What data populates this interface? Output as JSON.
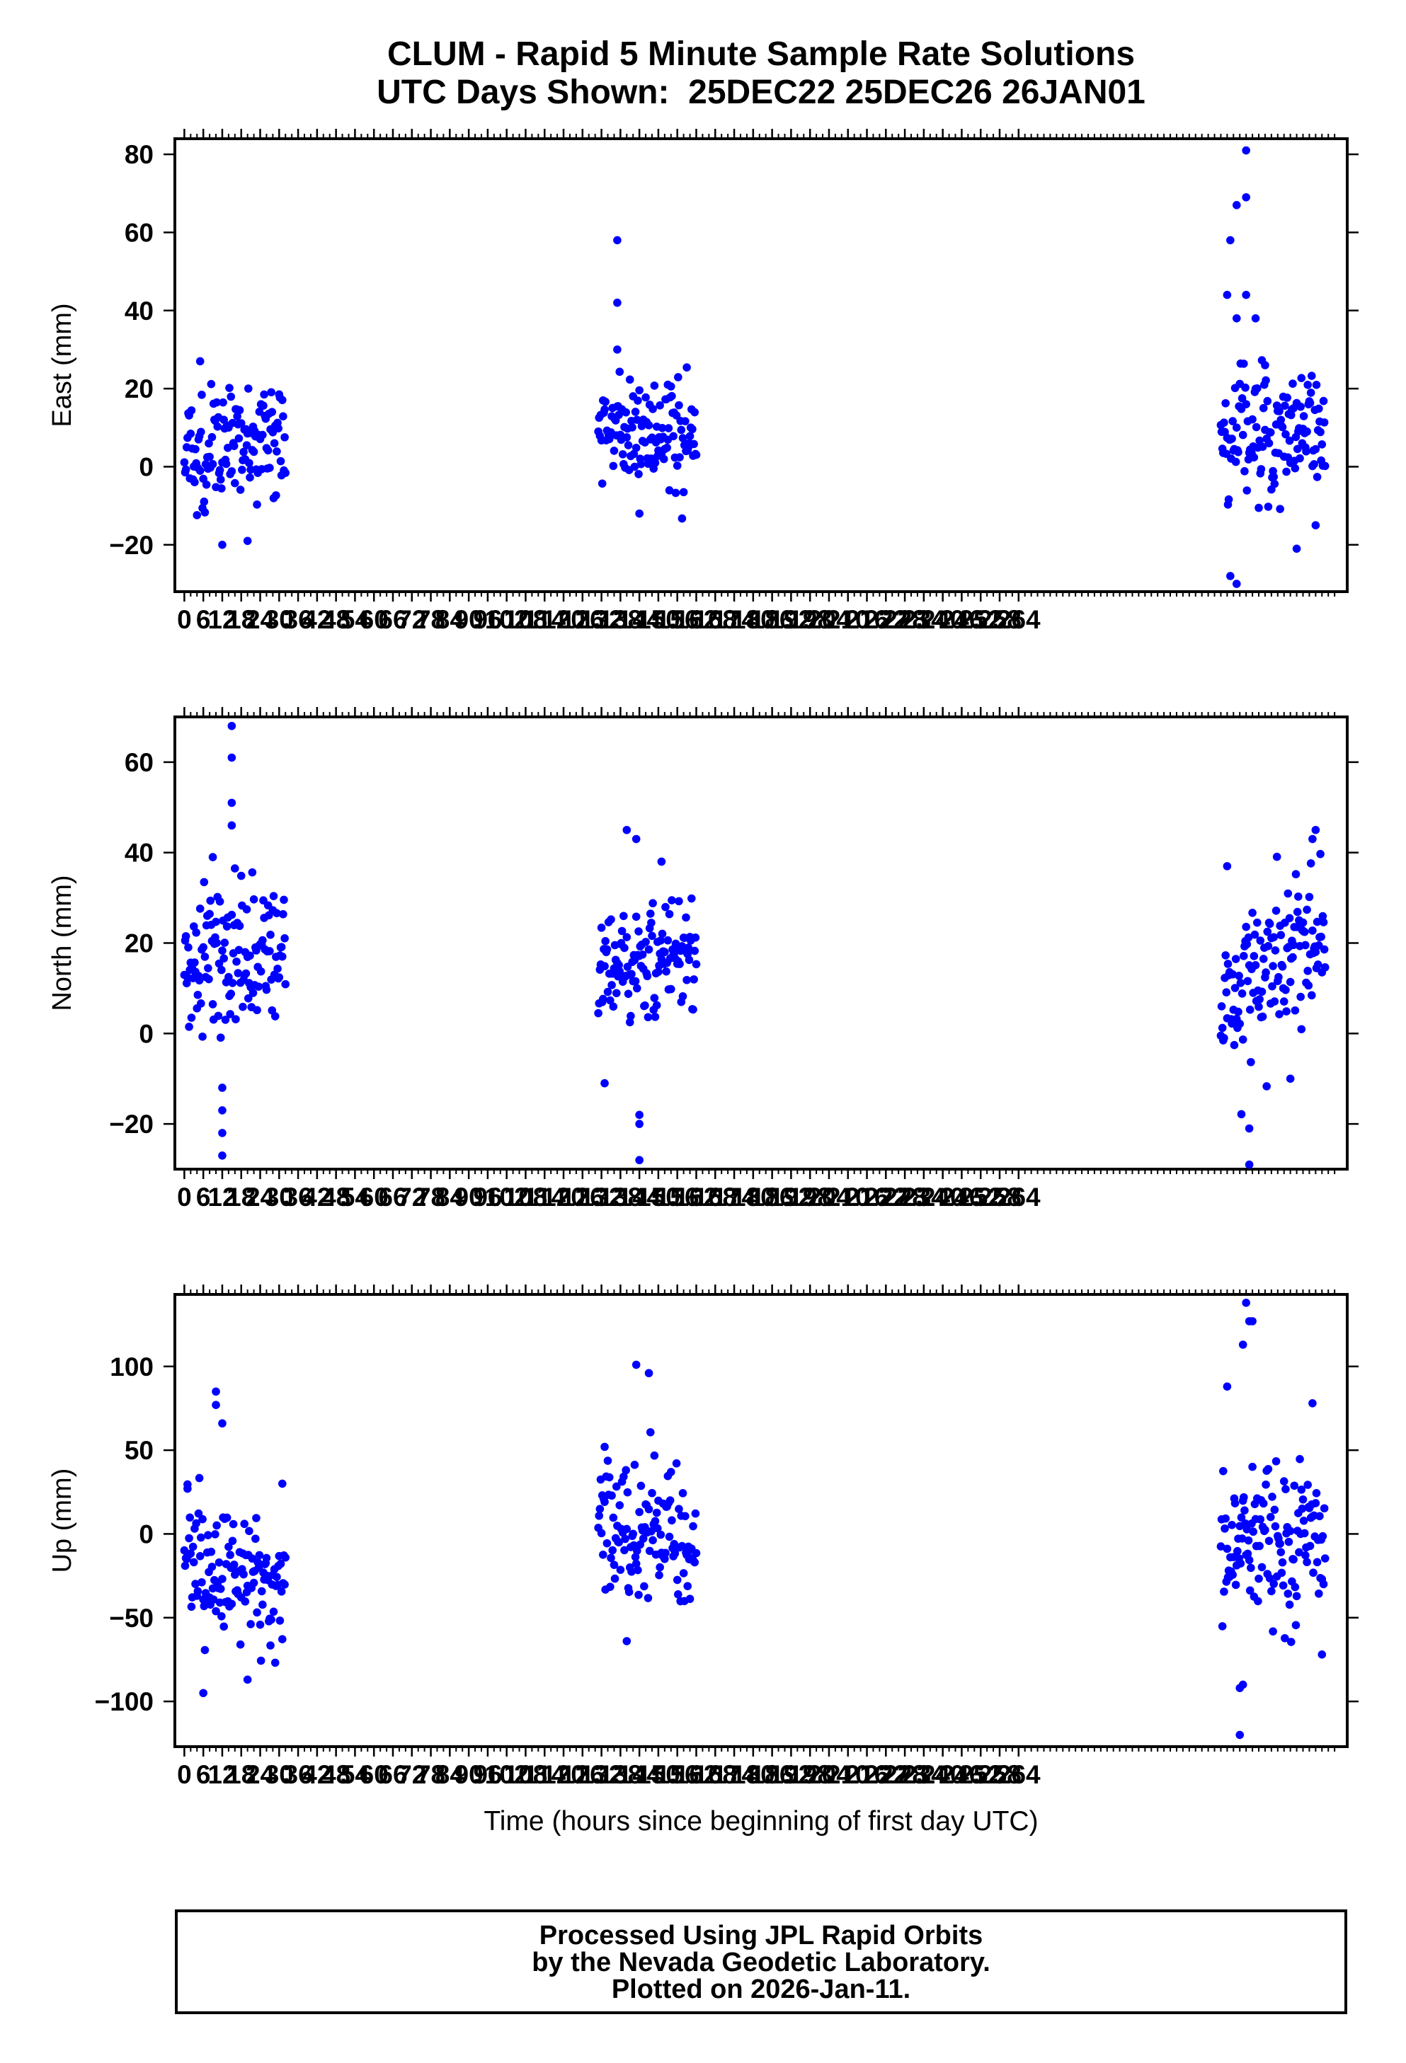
{
  "title": {
    "line1": "CLUM - Rapid 5 Minute Sample Rate Solutions",
    "line2": "UTC Days Shown:  25DEC22 25DEC26 26JAN01"
  },
  "footer": {
    "line1": "Processed Using JPL Rapid Orbits",
    "line2": "by the Nevada Geodetic Laboratory.",
    "line3": "Plotted on 2026-Jan-11."
  },
  "colors": {
    "points": "#0000ff",
    "axes": "#000000",
    "background": "#ffffff"
  },
  "chart_data": [
    {
      "type": "scatter",
      "ylabel": "East (mm)",
      "xlabel": "",
      "xlim": [
        -3,
        368
      ],
      "ylim": [
        -32,
        84
      ],
      "yticks": [
        -20,
        0,
        20,
        40,
        60,
        80
      ],
      "xticks": [
        0,
        6,
        12,
        18,
        24,
        30,
        36,
        42,
        48,
        54,
        60,
        66,
        72,
        78,
        84,
        90,
        96,
        102,
        108,
        114,
        120,
        126,
        132,
        138,
        144,
        150,
        156,
        162,
        168,
        174,
        180,
        186,
        192,
        198,
        204,
        210,
        216,
        222,
        228,
        234,
        240,
        246,
        252,
        258,
        264
      ],
      "xtick_labels": [
        "0",
        "6",
        "12",
        "18",
        "24",
        "30",
        "36",
        "42",
        "48",
        "54",
        "60",
        "66",
        "72",
        "78",
        "84",
        "90",
        "96",
        "102",
        "108",
        "114",
        "120",
        "126",
        "132",
        "138",
        "144",
        "150",
        "156",
        "162",
        "168",
        "174",
        "180",
        "186",
        "192",
        "198",
        "204",
        "210",
        "216",
        "222",
        "228",
        "234",
        "240",
        "246",
        "252",
        "258",
        "264"
      ],
      "clusters": [
        {
          "x_range": [
            0,
            32
          ],
          "mean": 6,
          "sd": 8,
          "slope": 0,
          "outliers": [
            [
              12,
              -20
            ],
            [
              20,
              -19
            ],
            [
              5,
              27
            ]
          ]
        },
        {
          "x_range": [
            131,
            162
          ],
          "mean": 8,
          "sd": 7,
          "slope": -0.15,
          "outliers": [
            [
              137,
              58
            ],
            [
              137,
              42
            ],
            [
              137,
              30
            ],
            [
              144,
              -12
            ],
            [
              153,
              21
            ]
          ]
        },
        {
          "x_range": [
            328,
            361
          ],
          "mean": 7,
          "sd": 8,
          "slope": 0.08,
          "outliers": [
            [
              336,
              81
            ],
            [
              333,
              67
            ],
            [
              336,
              69
            ],
            [
              331,
              58
            ],
            [
              330,
              44
            ],
            [
              333,
              38
            ],
            [
              336,
              44
            ],
            [
              339,
              38
            ],
            [
              331,
              -28
            ],
            [
              333,
              -30
            ],
            [
              342,
              26
            ],
            [
              352,
              -21
            ],
            [
              358,
              -15
            ]
          ]
        }
      ]
    },
    {
      "type": "scatter",
      "ylabel": "North (mm)",
      "xlabel": "",
      "xlim": [
        -3,
        368
      ],
      "ylim": [
        -30,
        70
      ],
      "yticks": [
        -20,
        0,
        20,
        40,
        60
      ],
      "xticks": [
        0,
        6,
        12,
        18,
        24,
        30,
        36,
        42,
        48,
        54,
        60,
        66,
        72,
        78,
        84,
        90,
        96,
        102,
        108,
        114,
        120,
        126,
        132,
        138,
        144,
        150,
        156,
        162,
        168,
        174,
        180,
        186,
        192,
        198,
        204,
        210,
        216,
        222,
        228,
        234,
        240,
        246,
        252,
        258,
        264
      ],
      "xtick_labels": [
        "0",
        "6",
        "12",
        "18",
        "24",
        "30",
        "36",
        "42",
        "48",
        "54",
        "60",
        "66",
        "72",
        "78",
        "84",
        "90",
        "96",
        "102",
        "108",
        "114",
        "120",
        "126",
        "132",
        "138",
        "144",
        "150",
        "156",
        "162",
        "168",
        "174",
        "180",
        "186",
        "192",
        "198",
        "204",
        "210",
        "216",
        "222",
        "228",
        "234",
        "240",
        "246",
        "252",
        "258",
        "264"
      ],
      "clusters": [
        {
          "x_range": [
            0,
            32
          ],
          "mean": 16,
          "sd": 8,
          "slope": 0.2,
          "outliers": [
            [
              15,
              68
            ],
            [
              15,
              61
            ],
            [
              15,
              51
            ],
            [
              15,
              46
            ],
            [
              12,
              -27
            ],
            [
              12,
              -22
            ],
            [
              12,
              -17
            ],
            [
              12,
              -12
            ],
            [
              9,
              39
            ]
          ]
        },
        {
          "x_range": [
            131,
            162
          ],
          "mean": 17,
          "sd": 6,
          "slope": 0.15,
          "outliers": [
            [
              144,
              -28
            ],
            [
              144,
              -20
            ],
            [
              144,
              -18
            ],
            [
              140,
              45
            ],
            [
              143,
              43
            ],
            [
              133,
              -11
            ],
            [
              151,
              38
            ]
          ]
        },
        {
          "x_range": [
            328,
            361
          ],
          "mean": 14,
          "sd": 9,
          "slope": 0.45,
          "outliers": [
            [
              337,
              -29
            ],
            [
              337,
              -21
            ],
            [
              330,
              37
            ],
            [
              358,
              45
            ],
            [
              357,
              43
            ],
            [
              350,
              -10
            ]
          ]
        }
      ]
    },
    {
      "type": "scatter",
      "ylabel": "Up (mm)",
      "xlabel": "Time (hours since beginning of first day UTC)",
      "xlim": [
        -3,
        368
      ],
      "ylim": [
        -127,
        143
      ],
      "yticks": [
        -100,
        -50,
        0,
        50,
        100
      ],
      "xticks": [
        0,
        6,
        12,
        18,
        24,
        30,
        36,
        42,
        48,
        54,
        60,
        66,
        72,
        78,
        84,
        90,
        96,
        102,
        108,
        114,
        120,
        126,
        132,
        138,
        144,
        150,
        156,
        162,
        168,
        174,
        180,
        186,
        192,
        198,
        204,
        210,
        216,
        222,
        228,
        234,
        240,
        246,
        252,
        258,
        264
      ],
      "xtick_labels": [
        "0",
        "6",
        "12",
        "18",
        "24",
        "30",
        "36",
        "42",
        "48",
        "54",
        "60",
        "66",
        "72",
        "78",
        "84",
        "90",
        "96",
        "102",
        "108",
        "114",
        "120",
        "126",
        "132",
        "138",
        "144",
        "150",
        "156",
        "162",
        "168",
        "174",
        "180",
        "186",
        "192",
        "198",
        "204",
        "210",
        "216",
        "222",
        "228",
        "234",
        "240",
        "246",
        "252",
        "258",
        "264"
      ],
      "clusters": [
        {
          "x_range": [
            0,
            32
          ],
          "mean": -22,
          "sd": 22,
          "slope": -0.3,
          "outliers": [
            [
              10,
              85
            ],
            [
              10,
              77
            ],
            [
              12,
              66
            ],
            [
              6,
              -95
            ],
            [
              20,
              -87
            ],
            [
              1,
              27
            ],
            [
              31,
              30
            ]
          ]
        },
        {
          "x_range": [
            131,
            162
          ],
          "mean": 0,
          "sd": 22,
          "slope": -0.3,
          "outliers": [
            [
              143,
              101
            ],
            [
              147,
              96
            ],
            [
              140,
              -64
            ],
            [
              133,
              52
            ]
          ]
        },
        {
          "x_range": [
            328,
            361
          ],
          "mean": -2,
          "sd": 25,
          "slope": 0,
          "outliers": [
            [
              336,
              138
            ],
            [
              337,
              127
            ],
            [
              338,
              127
            ],
            [
              335,
              113
            ],
            [
              334,
              -92
            ],
            [
              335,
              -90
            ],
            [
              334,
              -120
            ],
            [
              357,
              78
            ],
            [
              330,
              88
            ],
            [
              360,
              -72
            ]
          ]
        }
      ]
    }
  ]
}
